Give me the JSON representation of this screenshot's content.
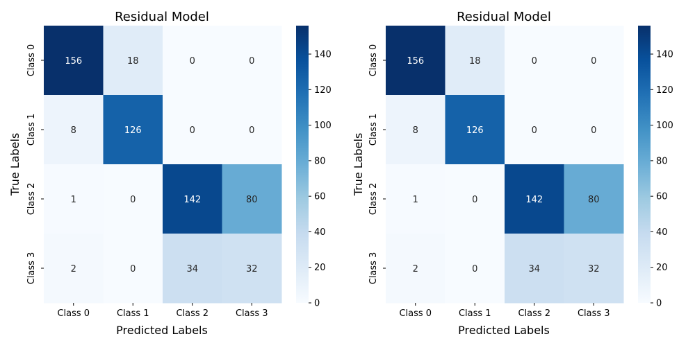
{
  "chart_data": [
    {
      "type": "heatmap",
      "title": "Residual Model",
      "xlabel": "Predicted Labels",
      "ylabel": "True Labels",
      "x_categories": [
        "Class 0",
        "Class 1",
        "Class 2",
        "Class 3"
      ],
      "y_categories": [
        "Class 0",
        "Class 1",
        "Class 2",
        "Class 3"
      ],
      "values": [
        [
          156,
          18,
          0,
          0
        ],
        [
          8,
          126,
          0,
          0
        ],
        [
          1,
          0,
          142,
          80
        ],
        [
          2,
          0,
          34,
          32
        ]
      ],
      "colorbar": {
        "range": [
          0,
          156
        ],
        "ticks": [
          "0",
          "20",
          "40",
          "60",
          "80",
          "100",
          "120",
          "140"
        ],
        "colormap": "Blues"
      }
    },
    {
      "type": "heatmap",
      "title": "Residual Model",
      "xlabel": "Predicted Labels",
      "ylabel": "True Labels",
      "x_categories": [
        "Class 0",
        "Class 1",
        "Class 2",
        "Class 3"
      ],
      "y_categories": [
        "Class 0",
        "Class 1",
        "Class 2",
        "Class 3"
      ],
      "values": [
        [
          156,
          18,
          0,
          0
        ],
        [
          8,
          126,
          0,
          0
        ],
        [
          1,
          0,
          142,
          80
        ],
        [
          2,
          0,
          34,
          32
        ]
      ],
      "colorbar": {
        "range": [
          0,
          156
        ],
        "ticks": [
          "0",
          "20",
          "40",
          "60",
          "80",
          "100",
          "120",
          "140"
        ],
        "colormap": "Blues"
      }
    }
  ]
}
